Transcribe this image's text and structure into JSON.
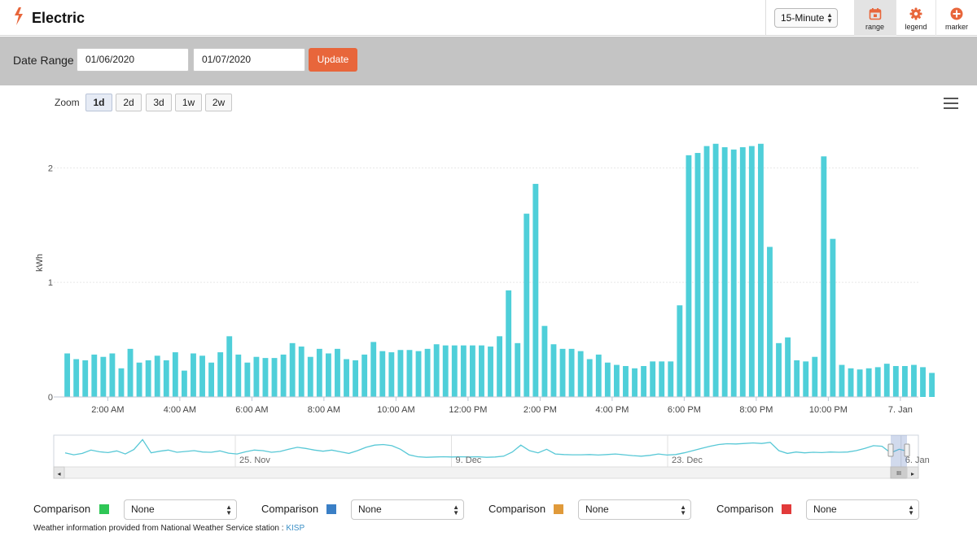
{
  "header": {
    "title": "Electric",
    "interval": "15-Minute",
    "tools": [
      {
        "id": "range",
        "label": "range",
        "icon": "calendar-icon"
      },
      {
        "id": "legend",
        "label": "legend",
        "icon": "gear-icon"
      },
      {
        "id": "marker",
        "label": "marker",
        "icon": "plus-circle-icon"
      }
    ]
  },
  "range_bar": {
    "label": "Date Range",
    "start_date": "01/06/2020",
    "end_date": "01/07/2020",
    "update_label": "Update"
  },
  "zoom": {
    "label": "Zoom",
    "buttons": [
      "1d",
      "2d",
      "3d",
      "1w",
      "2w"
    ],
    "active": "1d"
  },
  "colors": {
    "bar": "#4fcfd9",
    "accent": "#e8663b",
    "comparison": [
      "#2fc656",
      "#3a7fc6",
      "#e09a3a",
      "#e23a3a"
    ]
  },
  "chart_data": {
    "type": "bar",
    "ylabel": "kWh",
    "ylim": [
      0,
      2.4
    ],
    "yticks": [
      0,
      1,
      2
    ],
    "xlim": [
      0.5,
      24.5
    ],
    "xticks": [
      {
        "v": 2,
        "label": "2:00 AM"
      },
      {
        "v": 4,
        "label": "4:00 AM"
      },
      {
        "v": 6,
        "label": "6:00 AM"
      },
      {
        "v": 8,
        "label": "8:00 AM"
      },
      {
        "v": 10,
        "label": "10:00 AM"
      },
      {
        "v": 12,
        "label": "12:00 PM"
      },
      {
        "v": 14,
        "label": "2:00 PM"
      },
      {
        "v": 16,
        "label": "4:00 PM"
      },
      {
        "v": 18,
        "label": "6:00 PM"
      },
      {
        "v": 20,
        "label": "8:00 PM"
      },
      {
        "v": 22,
        "label": "10:00 PM"
      },
      {
        "v": 24,
        "label": "7. Jan"
      }
    ],
    "start_hour": 0.75,
    "interval_hours": 0.25,
    "values": [
      0.38,
      0.33,
      0.32,
      0.37,
      0.35,
      0.38,
      0.25,
      0.42,
      0.3,
      0.32,
      0.36,
      0.32,
      0.39,
      0.23,
      0.38,
      0.36,
      0.3,
      0.39,
      0.53,
      0.37,
      0.3,
      0.35,
      0.34,
      0.34,
      0.37,
      0.47,
      0.44,
      0.35,
      0.42,
      0.38,
      0.42,
      0.33,
      0.32,
      0.37,
      0.48,
      0.4,
      0.39,
      0.41,
      0.41,
      0.4,
      0.42,
      0.46,
      0.45,
      0.45,
      0.45,
      0.45,
      0.45,
      0.44,
      0.53,
      0.93,
      0.47,
      1.6,
      1.86,
      0.62,
      0.46,
      0.42,
      0.42,
      0.4,
      0.33,
      0.37,
      0.3,
      0.28,
      0.27,
      0.25,
      0.27,
      0.31,
      0.31,
      0.31,
      0.8,
      2.11,
      2.13,
      2.19,
      2.21,
      2.18,
      2.16,
      2.18,
      2.19,
      2.21,
      1.31,
      0.47,
      0.52,
      0.32,
      0.31,
      0.35,
      2.1,
      1.38,
      0.28,
      0.25,
      0.24,
      0.25,
      0.26,
      0.29,
      0.27,
      0.27,
      0.28,
      0.26,
      0.21
    ]
  },
  "navigator": {
    "labels": [
      {
        "pos": 0.21,
        "label": "25. Nov"
      },
      {
        "pos": 0.46,
        "label": "9. Dec"
      },
      {
        "pos": 0.71,
        "label": "23. Dec"
      },
      {
        "pos": 0.98,
        "label": "6. Jan"
      }
    ],
    "series": [
      0.42,
      0.35,
      0.4,
      0.52,
      0.46,
      0.43,
      0.49,
      0.38,
      0.54,
      0.9,
      0.42,
      0.48,
      0.52,
      0.44,
      0.47,
      0.5,
      0.45,
      0.44,
      0.49,
      0.41,
      0.38,
      0.46,
      0.52,
      0.5,
      0.44,
      0.47,
      0.55,
      0.62,
      0.58,
      0.52,
      0.48,
      0.52,
      0.46,
      0.4,
      0.5,
      0.62,
      0.7,
      0.72,
      0.68,
      0.55,
      0.35,
      0.28,
      0.26,
      0.27,
      0.28,
      0.27,
      0.28,
      0.27,
      0.28,
      0.26,
      0.27,
      0.3,
      0.45,
      0.7,
      0.5,
      0.42,
      0.55,
      0.38,
      0.36,
      0.35,
      0.35,
      0.36,
      0.34,
      0.36,
      0.38,
      0.35,
      0.32,
      0.3,
      0.33,
      0.38,
      0.34,
      0.36,
      0.42,
      0.5,
      0.58,
      0.66,
      0.72,
      0.75,
      0.74,
      0.76,
      0.78,
      0.76,
      0.8,
      0.5,
      0.4,
      0.45,
      0.42,
      0.44,
      0.43,
      0.45,
      0.44,
      0.45,
      0.5,
      0.58,
      0.68,
      0.66,
      0.42,
      0.55,
      0.48
    ]
  },
  "comparisons": [
    {
      "label": "Comparison",
      "value": "None"
    },
    {
      "label": "Comparison",
      "value": "None"
    },
    {
      "label": "Comparison",
      "value": "None"
    },
    {
      "label": "Comparison",
      "value": "None"
    }
  ],
  "footer": {
    "note": "Weather information provided from National Weather Service station :",
    "station": "KISP"
  }
}
